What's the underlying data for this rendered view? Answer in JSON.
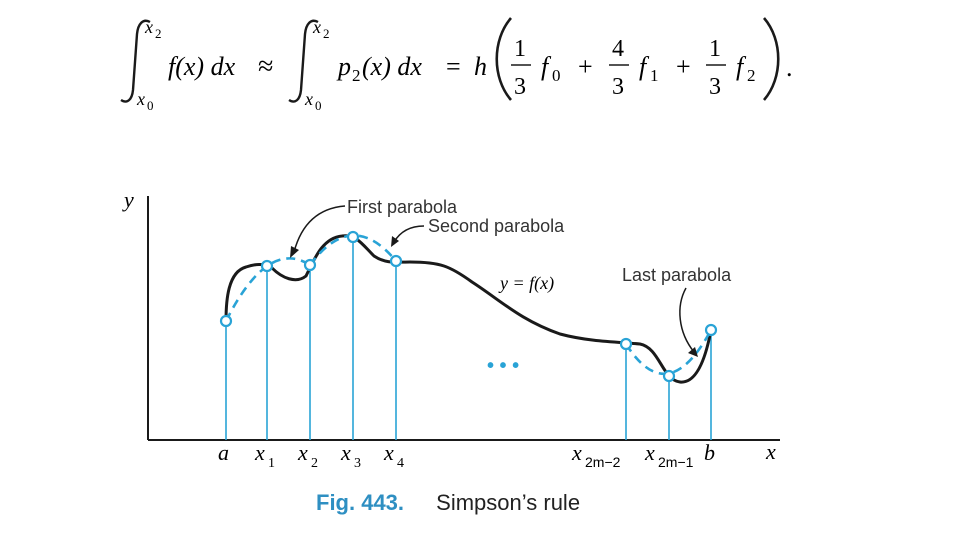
{
  "formula": {
    "integral_upper": "x",
    "integral_upper_sub": "2",
    "integral_lower": "x",
    "integral_lower_sub": "0",
    "lhs_integrand": "f(x) dx",
    "approx": "≈",
    "mid_integrand_p": "p",
    "mid_integrand_sub": "2",
    "mid_integrand_rest": "(x) dx",
    "equals": "=",
    "h": "h",
    "coef1_num": "1",
    "coef1_den": "3",
    "coef2_num": "4",
    "coef2_den": "3",
    "coef3_num": "1",
    "coef3_den": "3",
    "f": "f",
    "f0_sub": "0",
    "f1_sub": "1",
    "f2_sub": "2",
    "plus": "+",
    "period": "."
  },
  "figure": {
    "y_axis_label": "y",
    "x_axis_label": "x",
    "curve_label": "y = f(x)",
    "first_parabola_label": "First parabola",
    "second_parabola_label": "Second parabola",
    "last_parabola_label": "Last parabola",
    "ellipsis": "• • •",
    "ticks": {
      "a": "a",
      "x1": "x",
      "x1_sub": "1",
      "x2": "x",
      "x2_sub": "2",
      "x3": "x",
      "x3_sub": "3",
      "x4": "x",
      "x4_sub": "4",
      "x2m2": "x",
      "x2m2_sub": "2m−2",
      "x2m1": "x",
      "x2m1_sub": "2m−1",
      "b": "b"
    },
    "colors": {
      "curve": "#1a1a1a",
      "parabola": "#29a3d6",
      "ordinates": "#29a3d6",
      "axes": "#1a1a1a"
    }
  },
  "caption": {
    "number": "Fig. 443.",
    "title": "Simpson’s rule"
  }
}
